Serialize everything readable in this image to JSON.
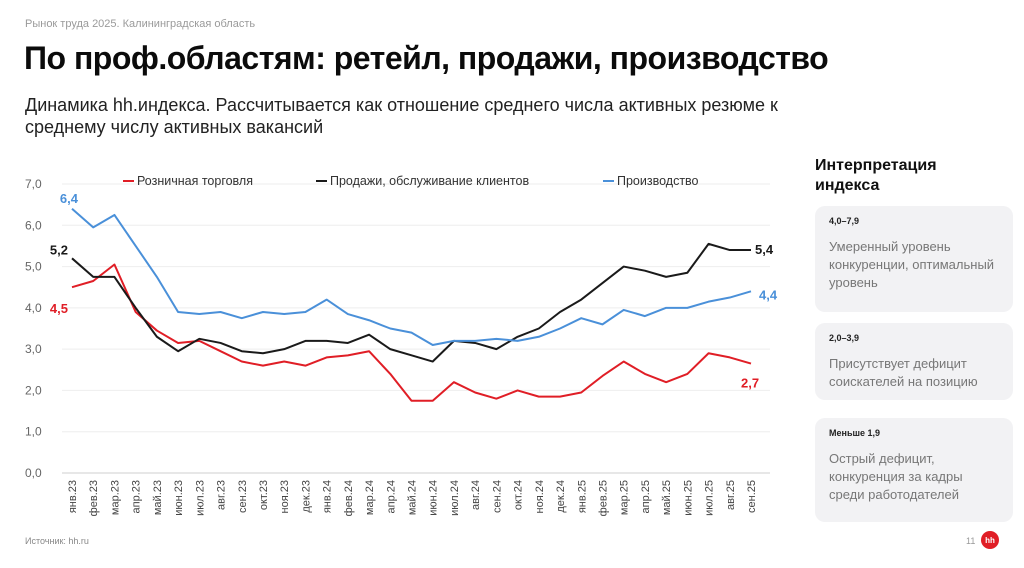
{
  "header": {
    "breadcrumb": "Рынок труда 2025. Калининградская область",
    "title": "По проф.областям: ретейл, продажи, производство",
    "subtitle": "Динамика hh.индекса. Рассчитывается как отношение среднего числа активных резюме к среднему числу активных вакансий"
  },
  "chart_data": {
    "type": "line",
    "title": "",
    "xlabel": "",
    "ylabel": "",
    "ylim": [
      0,
      7
    ],
    "y_ticks": [
      "0,0",
      "1,0",
      "2,0",
      "3,0",
      "4,0",
      "5,0",
      "6,0",
      "7,0"
    ],
    "grid": true,
    "legend_position": "top",
    "categories": [
      "янв.23",
      "фев.23",
      "мар.23",
      "апр.23",
      "май.23",
      "июн.23",
      "июл.23",
      "авг.23",
      "сен.23",
      "окт.23",
      "ноя.23",
      "дек.23",
      "янв.24",
      "фев.24",
      "мар.24",
      "апр.24",
      "май.24",
      "июн.24",
      "июл.24",
      "авг.24",
      "сен.24",
      "окт.24",
      "ноя.24",
      "дек.24",
      "янв.25",
      "фев.25",
      "мар.25",
      "апр.25",
      "май.25",
      "июн.25",
      "июл.25",
      "авг.25",
      "сен.25"
    ],
    "series": [
      {
        "name": "Розничная торговля",
        "color": "#e01e26",
        "start_label": "4,5",
        "end_label": "2,7",
        "values": [
          4.5,
          4.65,
          5.05,
          3.9,
          3.45,
          3.15,
          3.2,
          2.95,
          2.7,
          2.6,
          2.7,
          2.6,
          2.8,
          2.85,
          2.95,
          2.4,
          1.75,
          1.75,
          2.2,
          1.95,
          1.8,
          2.0,
          1.85,
          1.85,
          1.95,
          2.35,
          2.7,
          2.4,
          2.2,
          2.4,
          2.9,
          2.8,
          2.65
        ]
      },
      {
        "name": "Продажи, обслуживание клиентов",
        "color": "#1a1a1a",
        "start_label": "5,2",
        "end_label": "5,4",
        "values": [
          5.2,
          4.75,
          4.75,
          4.0,
          3.3,
          2.95,
          3.25,
          3.15,
          2.95,
          2.9,
          3.0,
          3.2,
          3.2,
          3.15,
          3.35,
          3.0,
          2.85,
          2.7,
          3.2,
          3.15,
          3.0,
          3.3,
          3.5,
          3.9,
          4.2,
          4.6,
          5.0,
          4.9,
          4.75,
          4.85,
          5.55,
          5.4,
          5.4
        ]
      },
      {
        "name": "Производство",
        "color": "#4a90d9",
        "start_label": "6,4",
        "end_label": "4,4",
        "values": [
          6.4,
          5.95,
          6.25,
          5.5,
          4.75,
          3.9,
          3.85,
          3.9,
          3.75,
          3.9,
          3.85,
          3.9,
          4.2,
          3.85,
          3.7,
          3.5,
          3.4,
          3.1,
          3.2,
          3.2,
          3.25,
          3.2,
          3.3,
          3.5,
          3.75,
          3.6,
          3.95,
          3.8,
          4.0,
          4.0,
          4.15,
          4.25,
          4.4
        ]
      }
    ]
  },
  "side": {
    "title": "Интерпретация индекса",
    "cards": [
      {
        "range": "4,0–7,9",
        "text": "Умеренный уровень конкуренции, оптимальный уровень"
      },
      {
        "range": "2,0–3,9",
        "text": "Присутствует дефицит соискателей на позицию"
      },
      {
        "range": "Меньше 1,9",
        "text": "Острый дефицит, конкуренция за кадры среди работодателей"
      }
    ]
  },
  "footer": {
    "source": "Источник: hh.ru",
    "page_number": "11",
    "logo": "hh"
  }
}
